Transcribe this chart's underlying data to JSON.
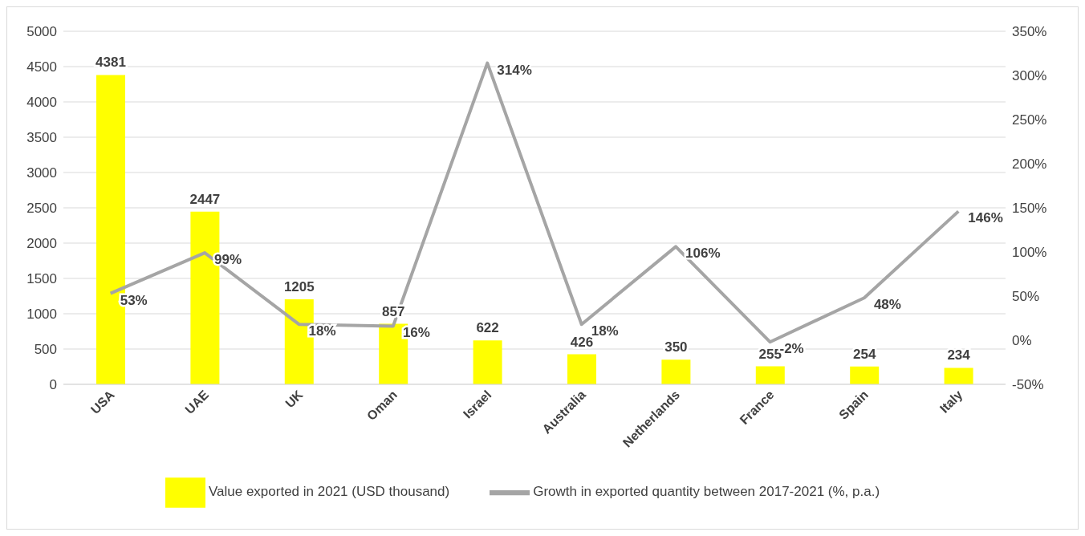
{
  "chart_data": {
    "type": "bar",
    "categories": [
      "USA",
      "UAE",
      "UK",
      "Oman",
      "Israel",
      "Australia",
      "Netherlands",
      "France",
      "Spain",
      "Italy"
    ],
    "series": [
      {
        "name": "Value exported in 2021 (USD thousand)",
        "color": "#ffff00",
        "values": [
          4381,
          2447,
          1205,
          857,
          622,
          426,
          350,
          255,
          254,
          234
        ],
        "value_labels": [
          "4381",
          "2447",
          "1205",
          "857",
          "622",
          "426",
          "350",
          "255",
          "254",
          "234"
        ]
      },
      {
        "name": "Growth in exported quantity between 2017-2021 (%, p.a.)",
        "type": "line",
        "axis": "y2",
        "color": "#a5a5a5",
        "values": [
          53,
          99,
          18,
          16,
          314,
          18,
          106,
          -2,
          48,
          146
        ],
        "value_labels": [
          "53%",
          "99%",
          "18%",
          "16%",
          "314%",
          "18%",
          "106%",
          "-2%",
          "48%",
          "146%"
        ]
      }
    ],
    "ylim": [
      0,
      5000
    ],
    "yticks": [
      0,
      500,
      1000,
      1500,
      2000,
      2500,
      3000,
      3500,
      4000,
      4500,
      5000
    ],
    "y2lim": [
      -50,
      350
    ],
    "y2ticks": [
      {
        "value": -50,
        "label": "-50%"
      },
      {
        "value": 0,
        "label": "0%"
      },
      {
        "value": 50,
        "label": "50%"
      },
      {
        "value": 100,
        "label": "100%"
      },
      {
        "value": 150,
        "label": "150%"
      },
      {
        "value": 200,
        "label": "200%"
      },
      {
        "value": 250,
        "label": "250%"
      },
      {
        "value": 300,
        "label": "300%"
      },
      {
        "value": 350,
        "label": "350%"
      }
    ],
    "grid": "y",
    "legend": "bottom"
  }
}
